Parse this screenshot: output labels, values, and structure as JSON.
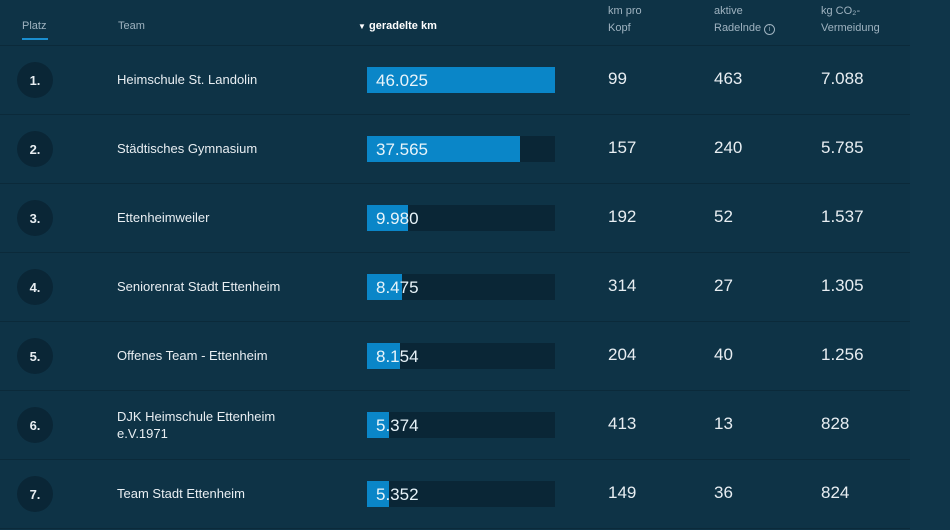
{
  "header": {
    "rank": "Platz",
    "team": "Team",
    "km": "geradelte km",
    "km_per_head": [
      "km pro",
      "Kopf"
    ],
    "active": [
      "aktive",
      "Radelnde"
    ],
    "co2": [
      "kg CO₂-",
      "Vermeidung"
    ],
    "info_icon": "info-icon",
    "sort_icon": "sort-desc-icon"
  },
  "colors": {
    "bar": "#0a86c8",
    "track": "#0a2636",
    "background": "#0e3346"
  },
  "max_km": 46025,
  "rows": [
    {
      "rank": "1.",
      "team": "Heimschule St. Landolin",
      "km": "46.025",
      "km_value": 46025,
      "per_head": "99",
      "active": "463",
      "co2": "7.088"
    },
    {
      "rank": "2.",
      "team": "Städtisches Gymnasium",
      "km": "37.565",
      "km_value": 37565,
      "per_head": "157",
      "active": "240",
      "co2": "5.785"
    },
    {
      "rank": "3.",
      "team": "Ettenheimweiler",
      "km": "9.980",
      "km_value": 9980,
      "per_head": "192",
      "active": "52",
      "co2": "1.537"
    },
    {
      "rank": "4.",
      "team": "Seniorenrat Stadt Ettenheim",
      "km": "8.475",
      "km_value": 8475,
      "per_head": "314",
      "active": "27",
      "co2": "1.305"
    },
    {
      "rank": "5.",
      "team": "Offenes Team - Ettenheim",
      "km": "8.154",
      "km_value": 8154,
      "per_head": "204",
      "active": "40",
      "co2": "1.256"
    },
    {
      "rank": "6.",
      "team": "DJK Heimschule Ettenheim e.V.1971",
      "km": "5.374",
      "km_value": 5374,
      "per_head": "413",
      "active": "13",
      "co2": "828"
    },
    {
      "rank": "7.",
      "team": "Team Stadt Ettenheim",
      "km": "5.352",
      "km_value": 5352,
      "per_head": "149",
      "active": "36",
      "co2": "824"
    }
  ]
}
